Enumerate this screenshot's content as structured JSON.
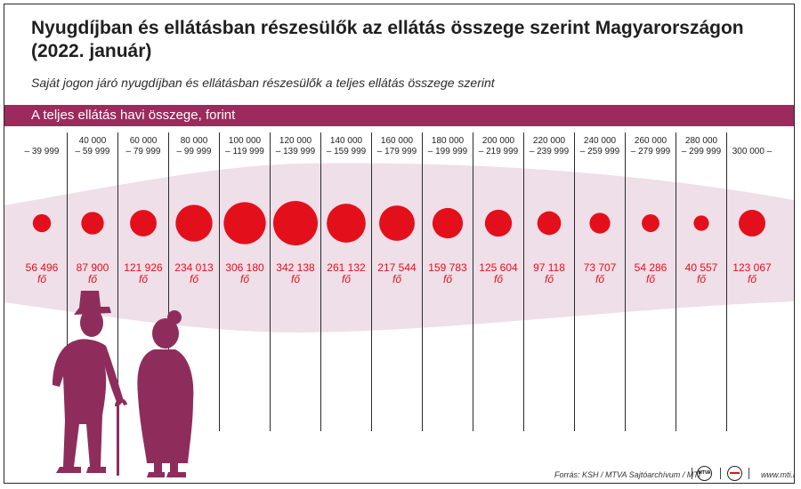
{
  "title": "Nyugdíjban és ellátásban részesülők az ellátás összege szerint Magyarországon (2022. január)",
  "subtitle": "Saját jogon járó nyugdíjban és ellátásban részesülők a teljes ellátás összege szerint",
  "band_label": "A teljes ellátás havi összege, forint",
  "unit_label": "fő",
  "footer": {
    "source": "Forrás: KSH / MTVA Sajtóarchívum / MTI",
    "logo_mtva": "MTVA",
    "site": "www.mti.hu"
  },
  "colors": {
    "band": "#9b2b5c",
    "bubble": "#e3101c",
    "shade": "#eedfe8",
    "figure": "#8e2d5c"
  },
  "chart_data": {
    "type": "bubble",
    "title": "A teljes ellátás havi összege, forint",
    "series": [
      {
        "name": "fő",
        "values": [
          56496,
          87900,
          121926,
          234013,
          306180,
          342138,
          261132,
          217544,
          159783,
          125604,
          97118,
          73707,
          54286,
          40557,
          123067
        ]
      }
    ],
    "categories": [
      {
        "line1": "",
        "line2": "– 39 999"
      },
      {
        "line1": "40 000",
        "line2": "– 59 999"
      },
      {
        "line1": "60 000",
        "line2": "– 79 999"
      },
      {
        "line1": "80 000",
        "line2": "– 99 999"
      },
      {
        "line1": "100 000",
        "line2": "– 119 999"
      },
      {
        "line1": "120 000",
        "line2": "– 139 999"
      },
      {
        "line1": "140 000",
        "line2": "– 159 999"
      },
      {
        "line1": "160 000",
        "line2": "– 179 999"
      },
      {
        "line1": "180 000",
        "line2": "– 199 999"
      },
      {
        "line1": "200 000",
        "line2": "– 219 999"
      },
      {
        "line1": "220 000",
        "line2": "– 239 999"
      },
      {
        "line1": "240 000",
        "line2": "– 259 999"
      },
      {
        "line1": "260 000",
        "line2": "– 279 999"
      },
      {
        "line1": "280 000",
        "line2": "– 299 999"
      },
      {
        "line1": "",
        "line2": "300 000 –"
      }
    ],
    "value_labels": [
      "56 496",
      "87 900",
      "121 926",
      "234 013",
      "306 180",
      "342 138",
      "261 132",
      "217 544",
      "159 783",
      "125 604",
      "97 118",
      "73 707",
      "54 286",
      "40 557",
      "123 067"
    ]
  }
}
